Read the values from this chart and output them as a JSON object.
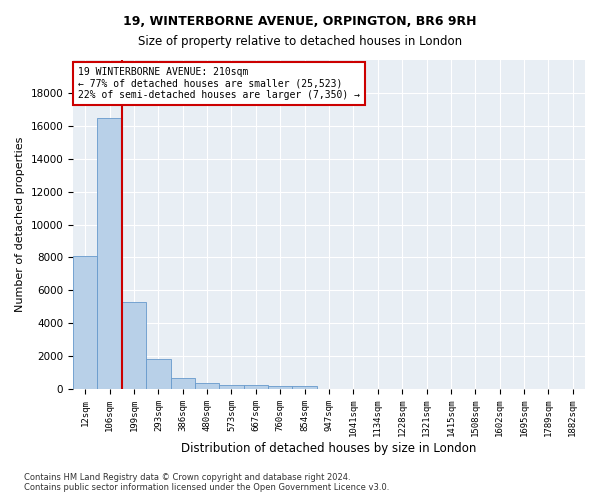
{
  "title1": "19, WINTERBORNE AVENUE, ORPINGTON, BR6 9RH",
  "title2": "Size of property relative to detached houses in London",
  "xlabel": "Distribution of detached houses by size in London",
  "ylabel": "Number of detached properties",
  "footnote1": "Contains HM Land Registry data © Crown copyright and database right 2024.",
  "footnote2": "Contains public sector information licensed under the Open Government Licence v3.0.",
  "categories": [
    "12sqm",
    "106sqm",
    "199sqm",
    "293sqm",
    "386sqm",
    "480sqm",
    "573sqm",
    "667sqm",
    "760sqm",
    "854sqm",
    "947sqm",
    "1041sqm",
    "1134sqm",
    "1228sqm",
    "1321sqm",
    "1415sqm",
    "1508sqm",
    "1602sqm",
    "1695sqm",
    "1789sqm",
    "1882sqm"
  ],
  "values": [
    8100,
    16500,
    5300,
    1850,
    700,
    350,
    270,
    220,
    185,
    160,
    0,
    0,
    0,
    0,
    0,
    0,
    0,
    0,
    0,
    0,
    0
  ],
  "bar_color": "#b8d0e8",
  "bar_edge_color": "#6699cc",
  "vline_index": 2,
  "annotation_text_line1": "19 WINTERBORNE AVENUE: 210sqm",
  "annotation_text_line2": "← 77% of detached houses are smaller (25,523)",
  "annotation_text_line3": "22% of semi-detached houses are larger (7,350) →",
  "vline_color": "#cc0000",
  "ylim": [
    0,
    20000
  ],
  "yticks": [
    0,
    2000,
    4000,
    6000,
    8000,
    10000,
    12000,
    14000,
    16000,
    18000,
    20000
  ],
  "background_color": "#ffffff",
  "plot_bg_color": "#e8eef4"
}
